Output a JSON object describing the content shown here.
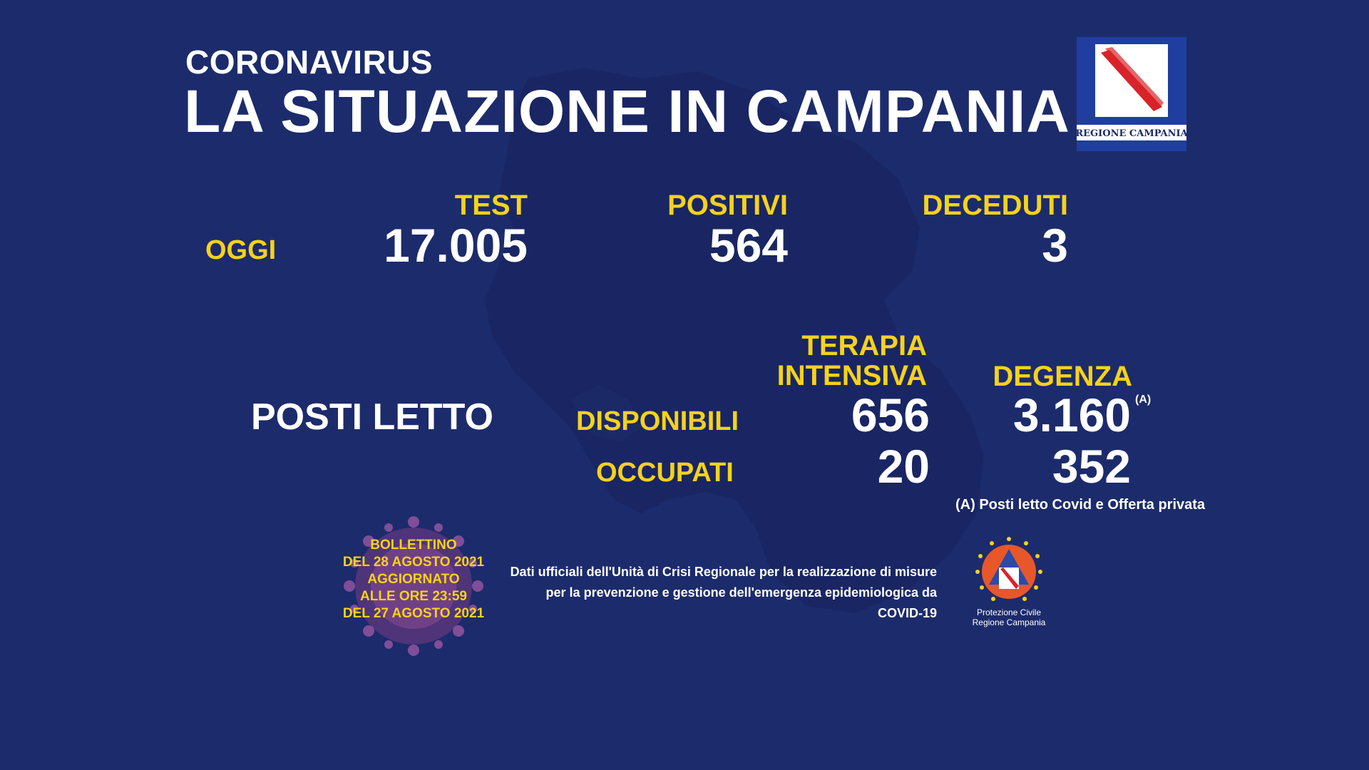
{
  "header": {
    "subtitle": "CORONAVIRUS",
    "title": "LA SITUAZIONE IN CAMPANIA"
  },
  "logo": {
    "text": "REGIONE CAMPANIA"
  },
  "today": {
    "row_label": "OGGI",
    "test": {
      "label": "TEST",
      "value": "17.005"
    },
    "positivi": {
      "label": "POSITIVI",
      "value": "564"
    },
    "deceduti": {
      "label": "DECEDUTI",
      "value": "3"
    }
  },
  "beds": {
    "label": "POSTI LETTO",
    "col_terapia_line1": "TERAPIA",
    "col_terapia_line2": "INTENSIVA",
    "col_degenza": "DEGENZA",
    "row_disponibili": "DISPONIBILI",
    "row_occupati": "OCCUPATI",
    "terapia_disponibili": "656",
    "terapia_occupati": "20",
    "degenza_disponibili": "3.160",
    "degenza_occupati": "352",
    "footnote_marker": "(A)",
    "footnote": "(A) Posti letto Covid e Offerta privata"
  },
  "bulletin": {
    "line1": "BOLLETTINO",
    "line2": "DEL 28 AGOSTO 2021",
    "line3": "AGGIORNATO",
    "line4": "ALLE ORE 23:59",
    "line5": "DEL 27 AGOSTO 2021"
  },
  "official": {
    "line1": "Dati ufficiali dell'Unità di Crisi Regionale per la realizzazione di misure",
    "line2": "per la prevenzione e gestione dell'emergenza epidemiologica da COVID-19"
  },
  "protezione_civile": {
    "line1": "Protezione Civile",
    "line2": "Regione Campania"
  },
  "colors": {
    "background": "#1c2b6b",
    "accent_yellow": "#f6d21b",
    "text_white": "#ffffff"
  }
}
